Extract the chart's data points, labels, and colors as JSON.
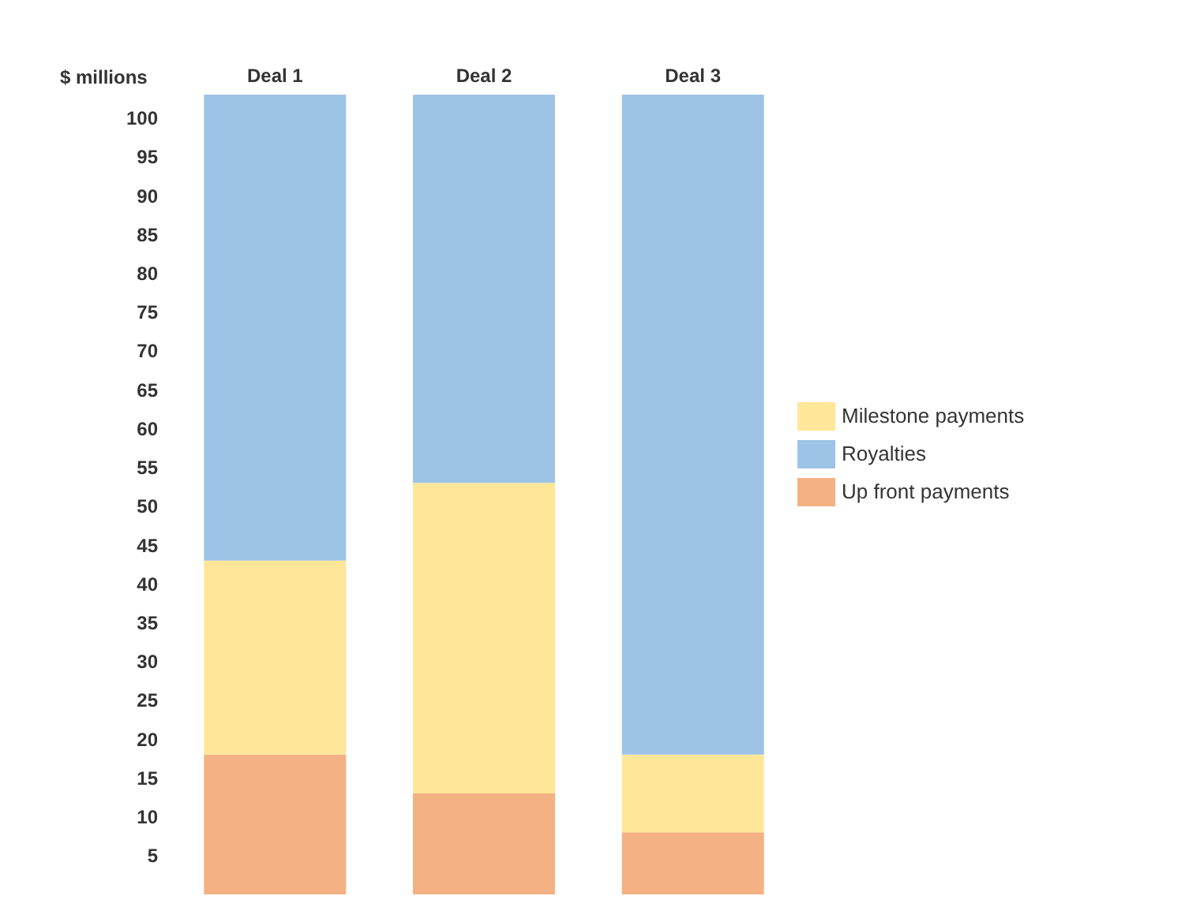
{
  "chart_data": {
    "type": "bar",
    "stacked": true,
    "ylabel": "$ millions",
    "categories": [
      "Deal 1",
      "Deal 2",
      "Deal 3"
    ],
    "series": [
      {
        "name": "Up front payments",
        "color": "#f4b183",
        "values": [
          18,
          13,
          8
        ]
      },
      {
        "name": "Milestone payments",
        "color": "#ffe699",
        "values": [
          25,
          40,
          10
        ]
      },
      {
        "name": "Royalties",
        "color": "#9dc3e6",
        "values": [
          60,
          50,
          85
        ]
      }
    ],
    "ylim": [
      0,
      103
    ],
    "yticks": [
      5,
      10,
      15,
      20,
      25,
      30,
      35,
      40,
      45,
      50,
      55,
      60,
      65,
      70,
      75,
      80,
      85,
      90,
      95,
      100
    ],
    "grid": false,
    "legend": "right"
  }
}
